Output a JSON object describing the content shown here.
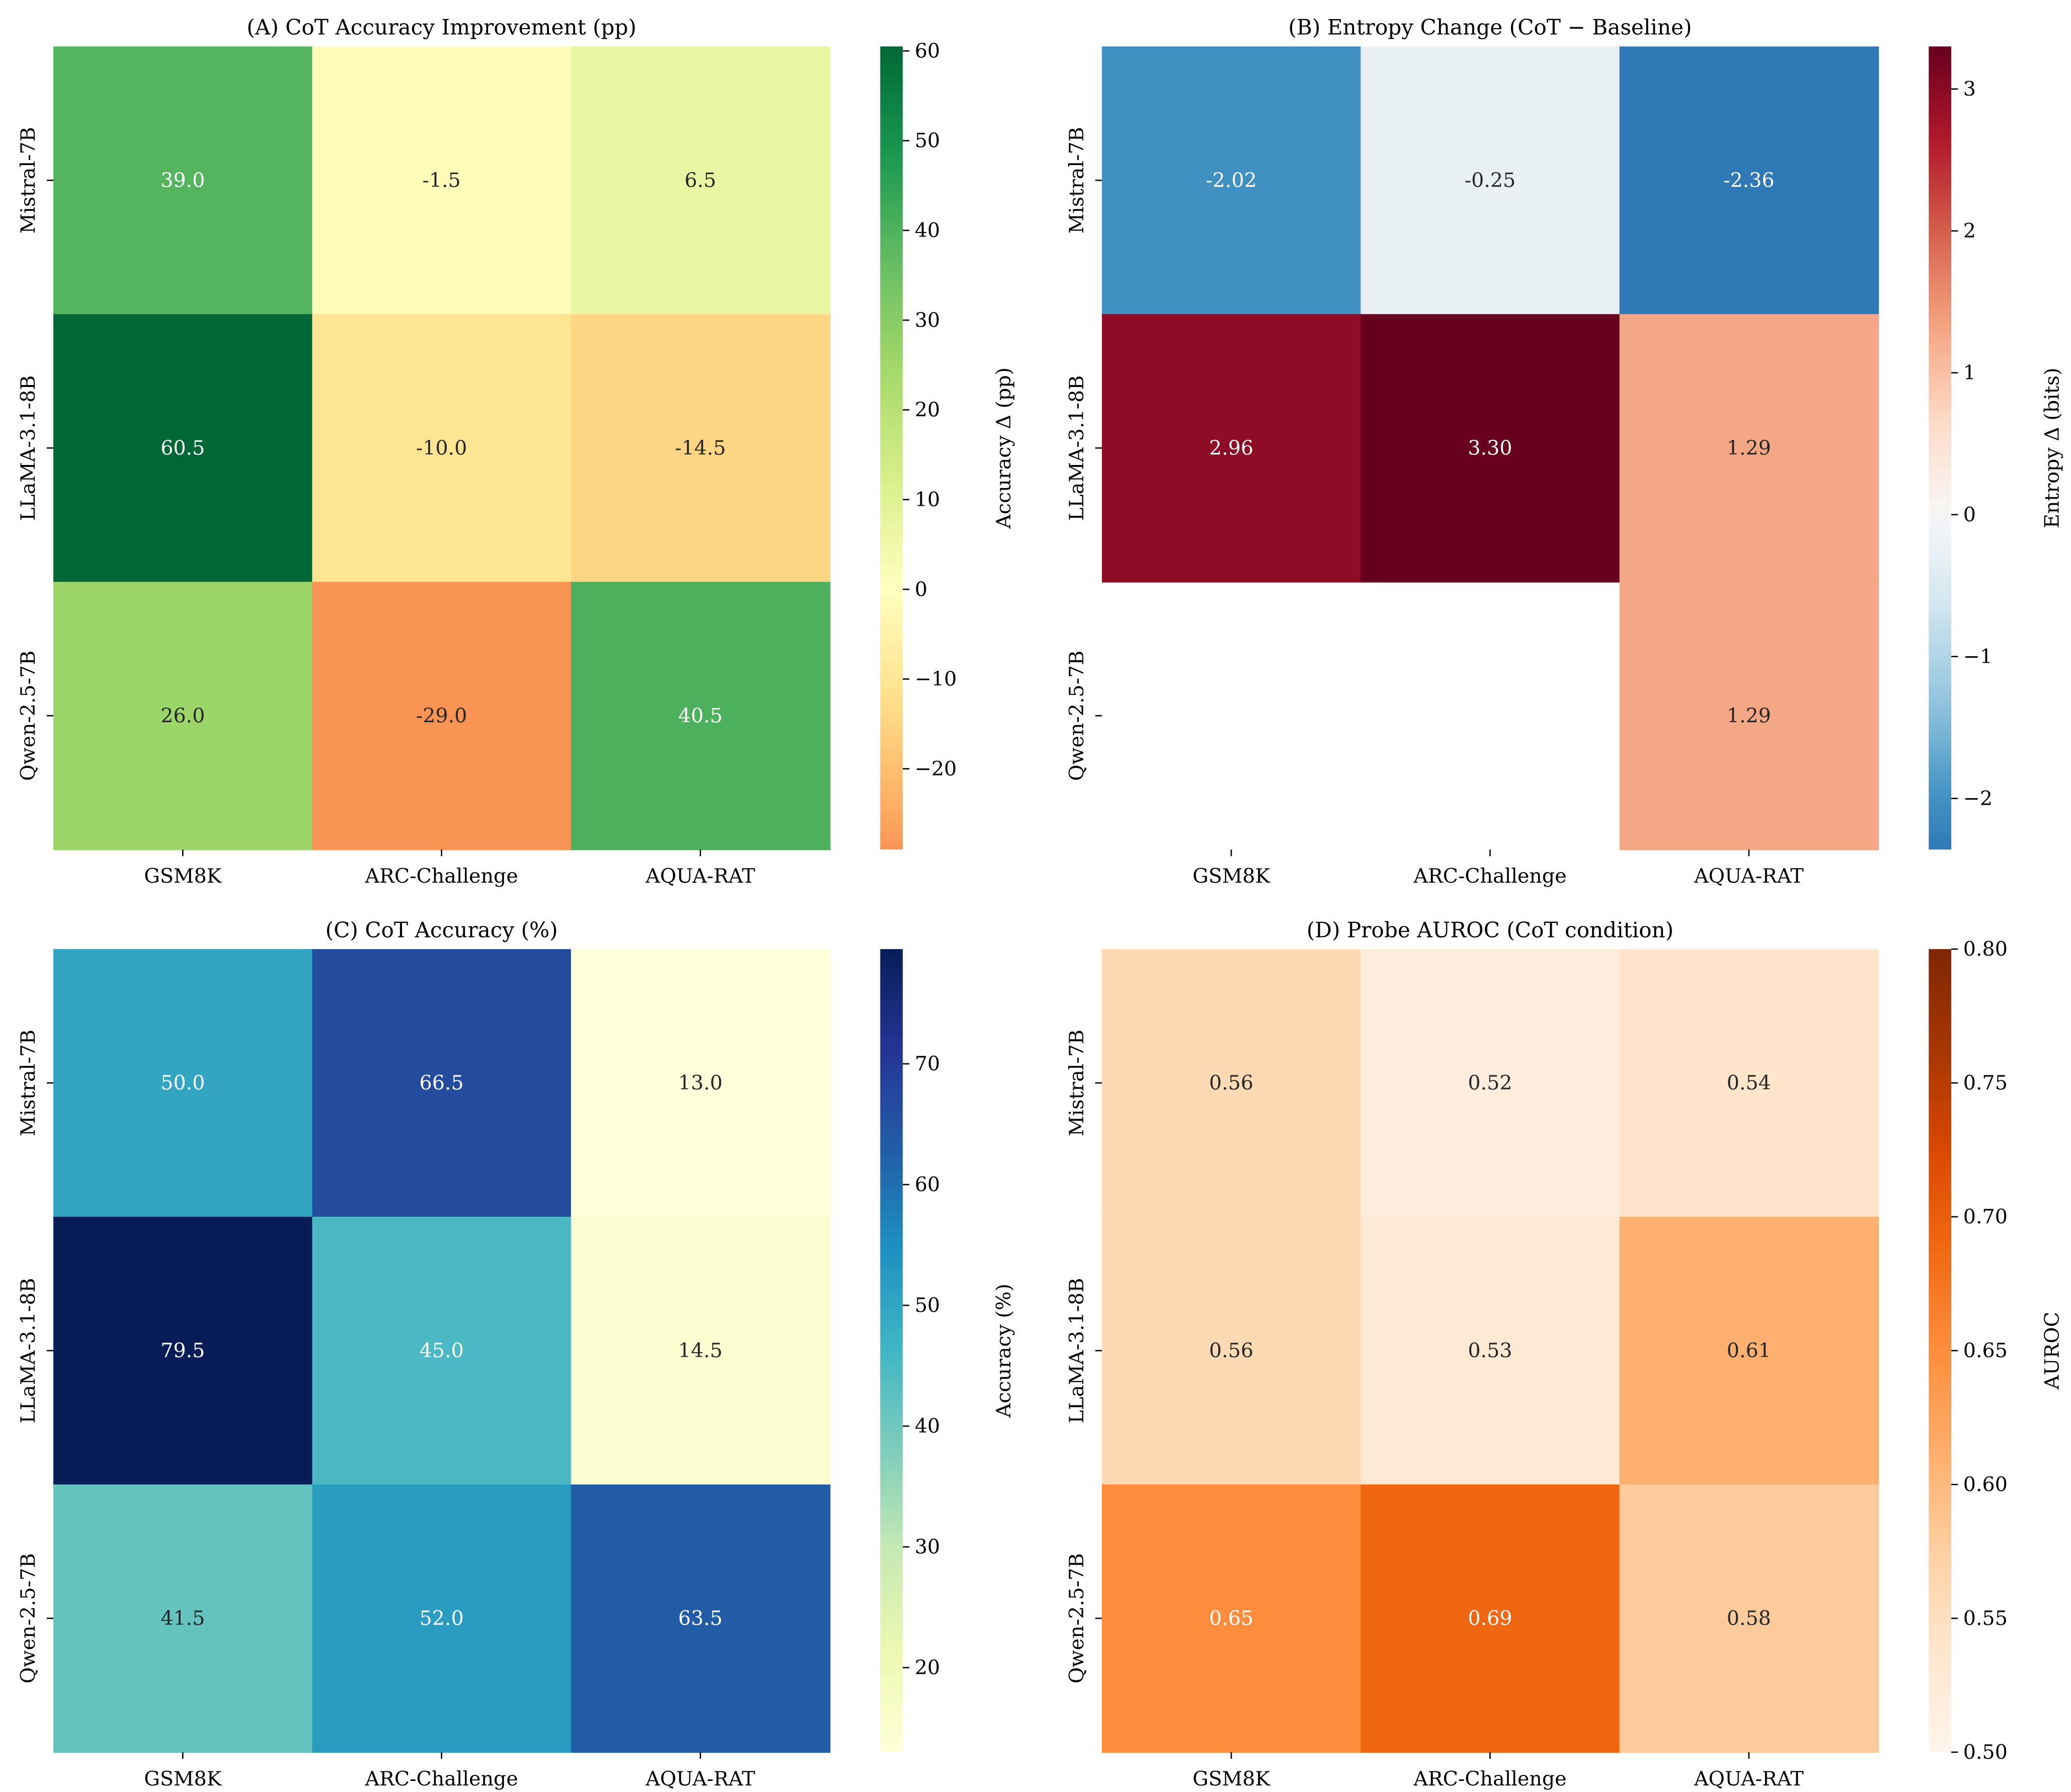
{
  "chart_data": [
    {
      "type": "heatmap",
      "title": "(A) CoT Accuracy Improvement (pp)",
      "rows": [
        "Mistral-7B",
        "LLaMA-3.1-8B",
        "Qwen-2.5-7B"
      ],
      "columns": [
        "GSM8K",
        "ARC-Challenge",
        "AQUA-RAT"
      ],
      "values": [
        [
          39.0,
          -1.5,
          6.5
        ],
        [
          60.5,
          -10.0,
          -14.5
        ],
        [
          26.0,
          -29.0,
          40.5
        ]
      ],
      "labels": [
        [
          "39.0",
          "-1.5",
          "6.5"
        ],
        [
          "60.5",
          "-10.0",
          "-14.5"
        ],
        [
          "26.0",
          "-29.0",
          "40.5"
        ]
      ],
      "colormap": "RdYlGn",
      "center": 0,
      "vmin": -29.0,
      "vmax": 60.5,
      "colorbar_label": "Accuracy Δ (pp)",
      "colorbar_ticks": [
        -20,
        -10,
        0,
        10,
        20,
        30,
        40,
        50,
        60
      ],
      "colorbar_tick_labels": [
        "−20",
        "−10",
        "0",
        "10",
        "20",
        "30",
        "40",
        "50",
        "60"
      ]
    },
    {
      "type": "heatmap",
      "title": "(B) Entropy Change (CoT − Baseline)",
      "rows": [
        "Mistral-7B",
        "LLaMA-3.1-8B",
        "Qwen-2.5-7B"
      ],
      "columns": [
        "GSM8K",
        "ARC-Challenge",
        "AQUA-RAT"
      ],
      "values": [
        [
          -2.02,
          -0.25,
          -2.36
        ],
        [
          2.96,
          3.3,
          1.29
        ],
        [
          null,
          null,
          1.29
        ]
      ],
      "labels": [
        [
          "-2.02",
          "-0.25",
          "-2.36"
        ],
        [
          "2.96",
          "3.30",
          "1.29"
        ],
        [
          "",
          "",
          "1.29"
        ]
      ],
      "colormap": "RdBu_r",
      "center": 0,
      "vmin": -2.36,
      "vmax": 3.3,
      "colorbar_label": "Entropy Δ (bits)",
      "colorbar_ticks": [
        -2,
        -1,
        0,
        1,
        2,
        3
      ],
      "colorbar_tick_labels": [
        "−2",
        "−1",
        "0",
        "1",
        "2",
        "3"
      ]
    },
    {
      "type": "heatmap",
      "title": "(C) CoT Accuracy (%)",
      "rows": [
        "Mistral-7B",
        "LLaMA-3.1-8B",
        "Qwen-2.5-7B"
      ],
      "columns": [
        "GSM8K",
        "ARC-Challenge",
        "AQUA-RAT"
      ],
      "values": [
        [
          50.0,
          66.5,
          13.0
        ],
        [
          79.5,
          45.0,
          14.5
        ],
        [
          41.5,
          52.0,
          63.5
        ]
      ],
      "labels": [
        [
          "50.0",
          "66.5",
          "13.0"
        ],
        [
          "79.5",
          "45.0",
          "14.5"
        ],
        [
          "41.5",
          "52.0",
          "63.5"
        ]
      ],
      "colormap": "YlGnBu",
      "vmin": 13.0,
      "vmax": 79.5,
      "colorbar_label": "Accuracy (%)",
      "colorbar_ticks": [
        20,
        30,
        40,
        50,
        60,
        70
      ],
      "colorbar_tick_labels": [
        "20",
        "30",
        "40",
        "50",
        "60",
        "70"
      ]
    },
    {
      "type": "heatmap",
      "title": "(D) Probe AUROC (CoT condition)",
      "rows": [
        "Mistral-7B",
        "LLaMA-3.1-8B",
        "Qwen-2.5-7B"
      ],
      "columns": [
        "GSM8K",
        "ARC-Challenge",
        "AQUA-RAT"
      ],
      "values": [
        [
          0.56,
          0.52,
          0.54
        ],
        [
          0.56,
          0.53,
          0.61
        ],
        [
          0.65,
          0.69,
          0.58
        ]
      ],
      "labels": [
        [
          "0.56",
          "0.52",
          "0.54"
        ],
        [
          "0.56",
          "0.53",
          "0.61"
        ],
        [
          "0.65",
          "0.69",
          "0.58"
        ]
      ],
      "colormap": "Oranges",
      "vmin": 0.5,
      "vmax": 0.8,
      "colorbar_label": "AUROC",
      "colorbar_ticks": [
        0.5,
        0.55,
        0.6,
        0.65,
        0.7,
        0.75,
        0.8
      ],
      "colorbar_tick_labels": [
        "0.50",
        "0.55",
        "0.60",
        "0.65",
        "0.70",
        "0.75",
        "0.80"
      ]
    }
  ]
}
